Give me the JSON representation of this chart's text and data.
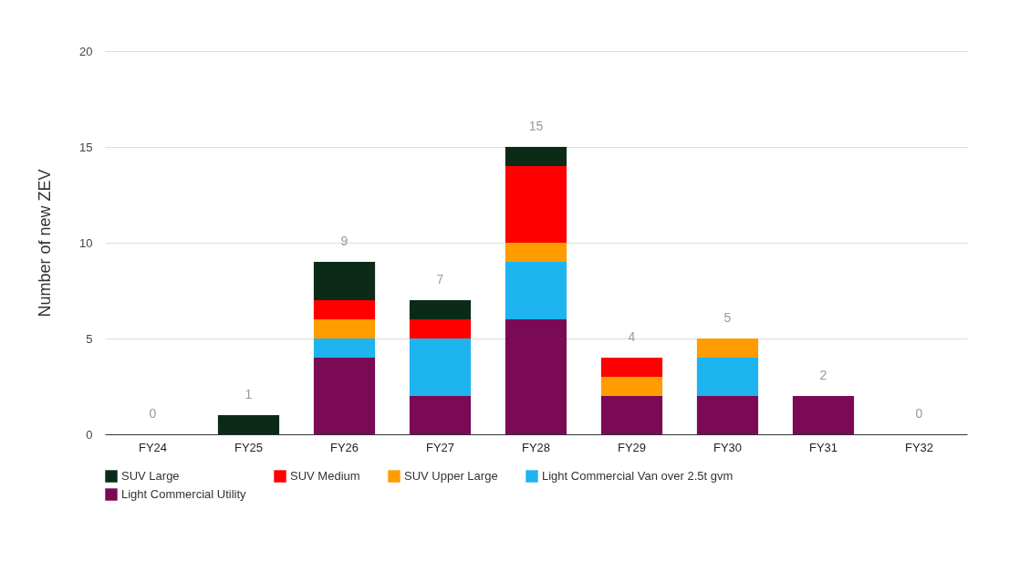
{
  "chart_data": {
    "type": "bar",
    "stacked": true,
    "ylabel": "Number of new ZEV",
    "categories": [
      "FY24",
      "FY25",
      "FY26",
      "FY27",
      "FY28",
      "FY29",
      "FY30",
      "FY31",
      "FY32"
    ],
    "series": [
      {
        "name": "Light Commercial Utility",
        "color": "#7b0a55",
        "values": [
          0,
          0,
          4,
          2,
          6,
          2,
          2,
          2,
          0
        ]
      },
      {
        "name": "Light Commercial Van over 2.5t gvm",
        "color": "#1eb4f0",
        "values": [
          0,
          0,
          1,
          3,
          3,
          0,
          2,
          0,
          0
        ]
      },
      {
        "name": "SUV Upper Large",
        "color": "#ff9c00",
        "values": [
          0,
          0,
          1,
          0,
          1,
          1,
          1,
          0,
          0
        ]
      },
      {
        "name": "SUV Medium",
        "color": "#ff0000",
        "values": [
          0,
          0,
          1,
          1,
          4,
          1,
          0,
          0,
          0
        ]
      },
      {
        "name": "SUV Large",
        "color": "#0b2a18",
        "values": [
          0,
          1,
          2,
          1,
          1,
          0,
          0,
          0,
          0
        ]
      }
    ],
    "totals": [
      "0",
      "1",
      "9",
      "7",
      "15",
      "4",
      "5",
      "2",
      "0"
    ],
    "ylim": [
      0,
      20
    ],
    "yticks": [
      0,
      5,
      10,
      15,
      20
    ],
    "grid": "y",
    "legend": "bottom"
  }
}
